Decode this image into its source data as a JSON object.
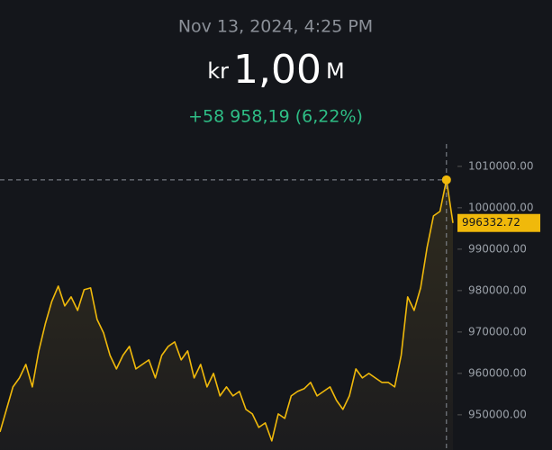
{
  "header": {
    "timestamp": "Nov 13, 2024, 4:25 PM",
    "currency": "kr",
    "amount": "1,00",
    "unit": "M",
    "change": "+58 958,19 (6,22%)"
  },
  "chart_data": {
    "type": "line",
    "color": "#f0b90b",
    "values": [
      945870,
      951300,
      956740,
      958910,
      962170,
      956740,
      965430,
      971960,
      977390,
      981090,
      976300,
      978480,
      975220,
      980220,
      980650,
      973040,
      969780,
      964350,
      961090,
      964350,
      966520,
      961090,
      962170,
      963260,
      958910,
      964350,
      966520,
      967610,
      963260,
      965430,
      958910,
      962170,
      956740,
      960000,
      954570,
      956740,
      954570,
      955650,
      951300,
      950220,
      946960,
      948040,
      943700,
      950220,
      949130,
      954570,
      955650,
      956300,
      957830,
      954570,
      955650,
      956740,
      953480,
      951300,
      954570,
      961090,
      958910,
      960000,
      958910,
      957830,
      957830,
      956740,
      964350,
      978480,
      975220,
      980650,
      990430,
      998040,
      999130,
      1006740,
      996332.72
    ],
    "ylim": [
      941500,
      1015400
    ],
    "yticks": [
      {
        "value": 950000,
        "label": "950000.00"
      },
      {
        "value": 960000,
        "label": "960000.00"
      },
      {
        "value": 970000,
        "label": "970000.00"
      },
      {
        "value": 980000,
        "label": "980000.00"
      },
      {
        "value": 990000,
        "label": "990000.00"
      },
      {
        "value": 1000000,
        "label": "1000000.00"
      },
      {
        "value": 1010000,
        "label": "1010000.00"
      }
    ]
  }
}
